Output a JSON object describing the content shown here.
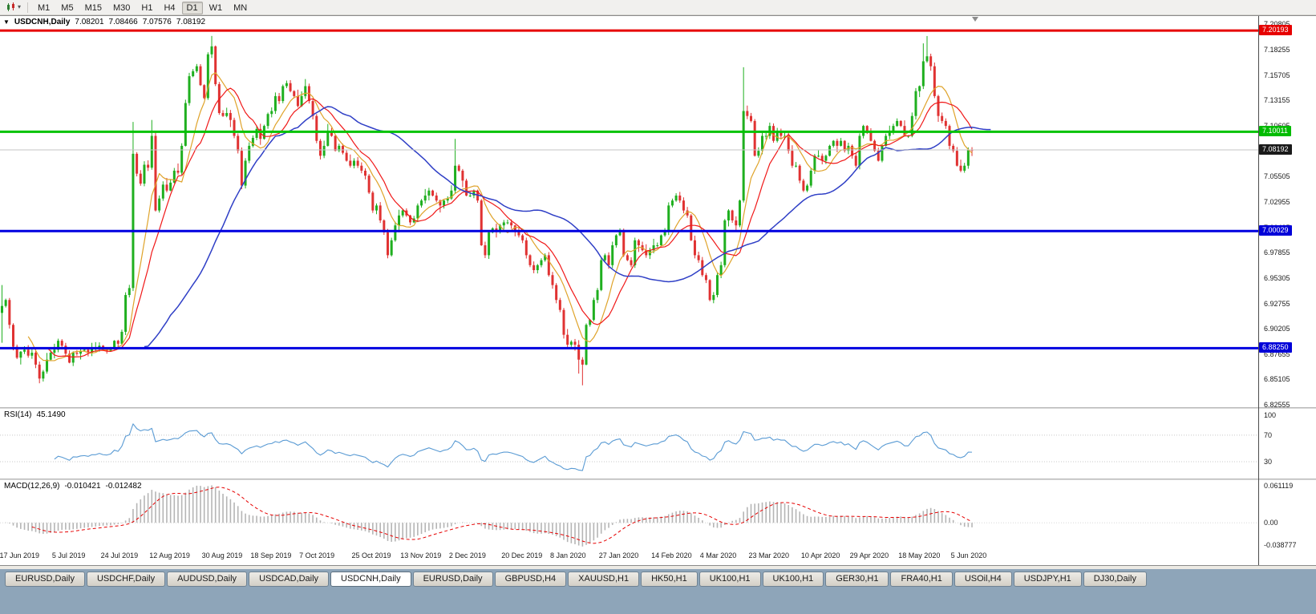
{
  "icons": {
    "symbol_dropdown": "▼",
    "toolbar_caret": "▾"
  },
  "toolbar": {
    "timeframes": [
      "M1",
      "M5",
      "M15",
      "M30",
      "H1",
      "H4",
      "D1",
      "W1",
      "MN"
    ],
    "active_timeframe": "D1"
  },
  "chart": {
    "symbol_title": "USDCNH,Daily",
    "quote": {
      "open": "7.08201",
      "high": "7.08466",
      "low": "7.07576",
      "close": "7.08192"
    }
  },
  "chart_data": {
    "type": "candlestick",
    "symbol": "USDCNH",
    "timeframe": "Daily",
    "title": "USDCNH,Daily",
    "first_open": 6.918,
    "closes": [
      6.925,
      6.931,
      6.906,
      6.884,
      6.873,
      6.879,
      6.881,
      6.875,
      6.878,
      6.866,
      6.852,
      6.859,
      6.871,
      6.878,
      6.881,
      6.89,
      6.885,
      6.877,
      6.868,
      6.878,
      6.877,
      6.88,
      6.881,
      6.878,
      6.882,
      6.882,
      6.885,
      6.881,
      6.88,
      6.882,
      6.89,
      6.887,
      6.899,
      6.936,
      6.943,
      7.078,
      7.058,
      7.048,
      7.067,
      7.064,
      7.096,
      7.021,
      7.033,
      7.047,
      7.041,
      7.049,
      7.061,
      7.059,
      7.086,
      7.129,
      7.156,
      7.161,
      7.166,
      7.147,
      7.134,
      7.178,
      7.186,
      7.148,
      7.119,
      7.116,
      7.119,
      7.112,
      7.096,
      7.081,
      7.046,
      7.071,
      7.086,
      7.094,
      7.103,
      7.093,
      7.106,
      7.118,
      7.121,
      7.136,
      7.131,
      7.146,
      7.149,
      7.141,
      7.136,
      7.126,
      7.136,
      7.146,
      7.131,
      7.116,
      7.091,
      7.076,
      7.086,
      7.101,
      7.096,
      7.081,
      7.086,
      7.079,
      7.071,
      7.066,
      7.071,
      7.066,
      7.061,
      7.056,
      7.039,
      7.021,
      7.026,
      7.011,
      6.999,
      6.976,
      6.991,
      7.006,
      7.016,
      7.021,
      7.016,
      7.009,
      7.013,
      7.026,
      7.031,
      7.036,
      7.041,
      7.036,
      7.031,
      7.026,
      7.031,
      7.033,
      7.041,
      7.066,
      7.061,
      7.051,
      7.036,
      7.036,
      7.041,
      7.031,
      6.986,
      6.976,
      6.999,
      7.003,
      7.001,
      7.006,
      7.009,
      7.009,
      7.006,
      7.001,
      6.996,
      6.991,
      6.976,
      6.966,
      6.961,
      6.966,
      6.971,
      6.976,
      6.956,
      6.946,
      6.931,
      6.921,
      6.896,
      6.886,
      6.889,
      6.886,
      6.871,
      6.866,
      6.906,
      6.911,
      6.931,
      6.941,
      6.971,
      6.976,
      6.966,
      6.986,
      6.996,
      7.001,
      6.976,
      6.971,
      6.966,
      6.991,
      6.986,
      6.981,
      6.976,
      6.981,
      6.986,
      6.986,
      6.996,
      7.001,
      7.026,
      7.031,
      7.036,
      7.031,
      7.021,
      7.016,
      6.991,
      6.976,
      6.971,
      6.956,
      6.951,
      6.931,
      6.936,
      6.956,
      6.966,
      7.011,
      7.021,
      7.011,
      7.006,
      7.031,
      7.121,
      7.116,
      7.111,
      7.076,
      7.081,
      7.096,
      7.096,
      7.106,
      7.091,
      7.101,
      7.096,
      7.096,
      7.081,
      7.066,
      7.066,
      7.051,
      7.041,
      7.046,
      7.061,
      7.076,
      7.076,
      7.071,
      7.076,
      7.086,
      7.091,
      7.086,
      7.091,
      7.081,
      7.086,
      7.076,
      7.066,
      7.096,
      7.106,
      7.101,
      7.091,
      7.081,
      7.071,
      7.086,
      7.096,
      7.101,
      7.106,
      7.111,
      7.106,
      7.096,
      7.096,
      7.116,
      7.141,
      7.146,
      7.171,
      7.176,
      7.166,
      7.136,
      7.116,
      7.111,
      7.106,
      7.086,
      7.081,
      7.066,
      7.061,
      7.066,
      7.082,
      7.08192
    ],
    "wick_overrides": [
      {
        "i": 0,
        "high": 6.946,
        "low": 6.888
      },
      {
        "i": 35,
        "high": 7.11,
        "low": 6.94
      },
      {
        "i": 40,
        "high": 7.112
      },
      {
        "i": 56,
        "high": 7.1965
      },
      {
        "i": 121,
        "high": 7.093
      },
      {
        "i": 154,
        "low": 6.857
      },
      {
        "i": 155,
        "low": 6.8452
      },
      {
        "i": 198,
        "high": 7.165
      },
      {
        "i": 246,
        "high": 7.189
      },
      {
        "i": 247,
        "high": 7.1964
      },
      {
        "i": 259,
        "open": 7.08201,
        "high": 7.08466,
        "low": 7.07576
      }
    ],
    "last_candle": {
      "open": 7.08201,
      "high": 7.08466,
      "low": 7.07576,
      "close": 7.08192
    },
    "y_axis_ticks": [
      "7.20805",
      "7.18255",
      "7.15705",
      "7.13155",
      "7.10605",
      "7.08055",
      "7.05505",
      "7.02955",
      "7.00405",
      "6.97855",
      "6.95305",
      "6.92755",
      "6.90205",
      "6.87655",
      "6.85105",
      "6.82555"
    ],
    "y_range": [
      6.8232,
      7.2165
    ],
    "x_labels": [
      {
        "label": "17 Jun 2019",
        "i": 0
      },
      {
        "label": "5 Jul 2019",
        "i": 14
      },
      {
        "label": "24 Jul 2019",
        "i": 27
      },
      {
        "label": "12 Aug 2019",
        "i": 40
      },
      {
        "label": "30 Aug 2019",
        "i": 54
      },
      {
        "label": "18 Sep 2019",
        "i": 67
      },
      {
        "label": "7 Oct 2019",
        "i": 80
      },
      {
        "label": "25 Oct 2019",
        "i": 94
      },
      {
        "label": "13 Nov 2019",
        "i": 107
      },
      {
        "label": "2 Dec 2019",
        "i": 120
      },
      {
        "label": "20 Dec 2019",
        "i": 134
      },
      {
        "label": "8 Jan 2020",
        "i": 147
      },
      {
        "label": "27 Jan 2020",
        "i": 160
      },
      {
        "label": "14 Feb 2020",
        "i": 174
      },
      {
        "label": "4 Mar 2020",
        "i": 187
      },
      {
        "label": "23 Mar 2020",
        "i": 200
      },
      {
        "label": "10 Apr 2020",
        "i": 214
      },
      {
        "label": "29 Apr 2020",
        "i": 227
      },
      {
        "label": "18 May 2020",
        "i": 240
      },
      {
        "label": "5 Jun 2020",
        "i": 254
      }
    ],
    "hlines": [
      {
        "name": "resistance-line",
        "price": 7.20193,
        "label": "7.20193",
        "color": "#E60000",
        "badge": "#E60000",
        "width": 3
      },
      {
        "name": "round-level-line",
        "price": 7.10011,
        "label": "7.10011",
        "color": "#00C300",
        "badge": "#00BB00",
        "width": 3
      },
      {
        "name": "bid-price-line",
        "price": 7.08192,
        "label": "7.08192",
        "color": "#C4C4C4",
        "badge": "#1A1A1A",
        "width": 1
      },
      {
        "name": "support-line-7-00",
        "price": 7.00029,
        "label": "7.00029",
        "color": "#0000E0",
        "badge": "#0000D8",
        "width": 3
      },
      {
        "name": "support-line-6-88",
        "price": 6.8825,
        "label": "6.88250",
        "color": "#0000E0",
        "badge": "#0000D8",
        "width": 3
      }
    ],
    "overlays": [
      {
        "name": "ma-fast",
        "type": "sma",
        "period": 8,
        "shift": 0,
        "color": "#DFA32A",
        "width": 1.2
      },
      {
        "name": "ma-mid",
        "type": "sma",
        "period": 13,
        "shift": 0,
        "color": "#F01818",
        "width": 1.2
      },
      {
        "name": "ma-slow",
        "type": "sma",
        "period": 34,
        "shift": 5,
        "color": "#2F3FC6",
        "width": 1.5
      }
    ],
    "rsi": {
      "label": "RSI(14)",
      "value": "45.1490",
      "period": 14,
      "color": "#5A9BD4",
      "levels": [
        70,
        30
      ],
      "axis_labels": [
        "100",
        "70",
        "30"
      ]
    },
    "macd": {
      "label": "MACD(12,26,9)",
      "value1": "-0.010421",
      "value2": "-0.012482",
      "fast": 12,
      "slow": 26,
      "signal": 9,
      "hist_color": "#B5B5B5",
      "signal_color": "#E60000",
      "axis_labels": [
        "0.061119",
        "0.00",
        "-0.038777"
      ]
    },
    "colors": {
      "bull": "#1FAF1F",
      "bear": "#E03232",
      "background": "#FFFFFF",
      "tabstrip": "#8EA5B9"
    }
  },
  "tabs": {
    "active_index": 4,
    "items": [
      "EURUSD,Daily",
      "USDCHF,Daily",
      "AUDUSD,Daily",
      "USDCAD,Daily",
      "USDCNH,Daily",
      "EURUSD,Daily",
      "GBPUSD,H4",
      "XAUUSD,H1",
      "HK50,H1",
      "UK100,H1",
      "UK100,H1",
      "GER30,H1",
      "FRA40,H1",
      "USOil,H4",
      "USDJPY,H1",
      "DJ30,Daily"
    ]
  }
}
